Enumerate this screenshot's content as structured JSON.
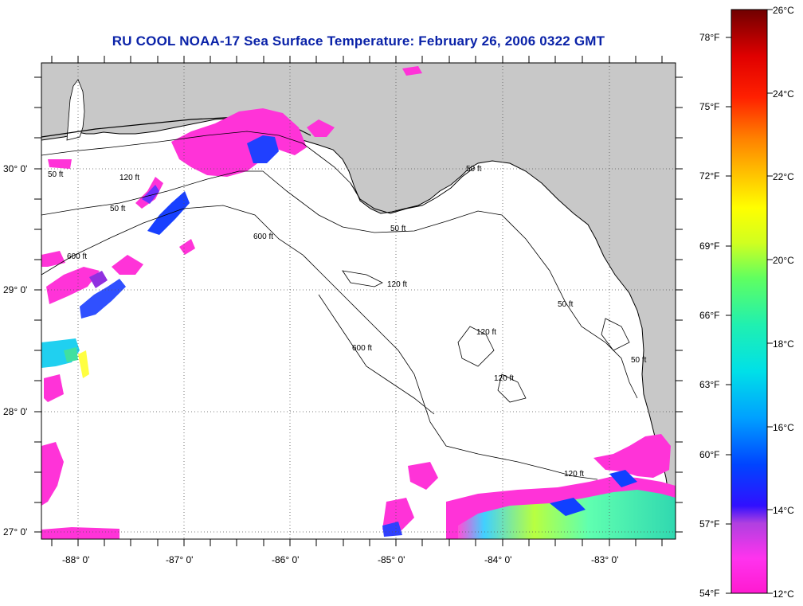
{
  "title": "RU COOL  NOAA-17  Sea Surface Temperature:  February 26, 2006 0322 GMT",
  "map": {
    "lon_ticks": [
      {
        "value": -88,
        "label": "-88° 0'"
      },
      {
        "value": -87,
        "label": "-87° 0'"
      },
      {
        "value": -86,
        "label": "-86° 0'"
      },
      {
        "value": -85,
        "label": "-85° 0'"
      },
      {
        "value": -84,
        "label": "-84° 0'"
      },
      {
        "value": -83,
        "label": "-83° 0'"
      }
    ],
    "lat_ticks": [
      {
        "value": 30,
        "label": "30° 0'"
      },
      {
        "value": 29,
        "label": "29° 0'"
      },
      {
        "value": 28,
        "label": "28° 0'"
      },
      {
        "value": 27,
        "label": "27° 0'"
      }
    ],
    "contour_labels": [
      "50 ft",
      "120 ft",
      "600 ft"
    ],
    "colors": {
      "land": "#c8c8c8",
      "ocean": "#ffffff",
      "grid": "#555555"
    }
  },
  "colorbar": {
    "celsius": [
      "26°C",
      "24°C",
      "22°C",
      "20°C",
      "18°C",
      "16°C",
      "14°C",
      "12°C"
    ],
    "fahrenheit": [
      "78°F",
      "75°F",
      "72°F",
      "69°F",
      "66°F",
      "63°F",
      "60°F",
      "57°F",
      "54°F"
    ],
    "min_c": 12,
    "max_c": 26
  }
}
